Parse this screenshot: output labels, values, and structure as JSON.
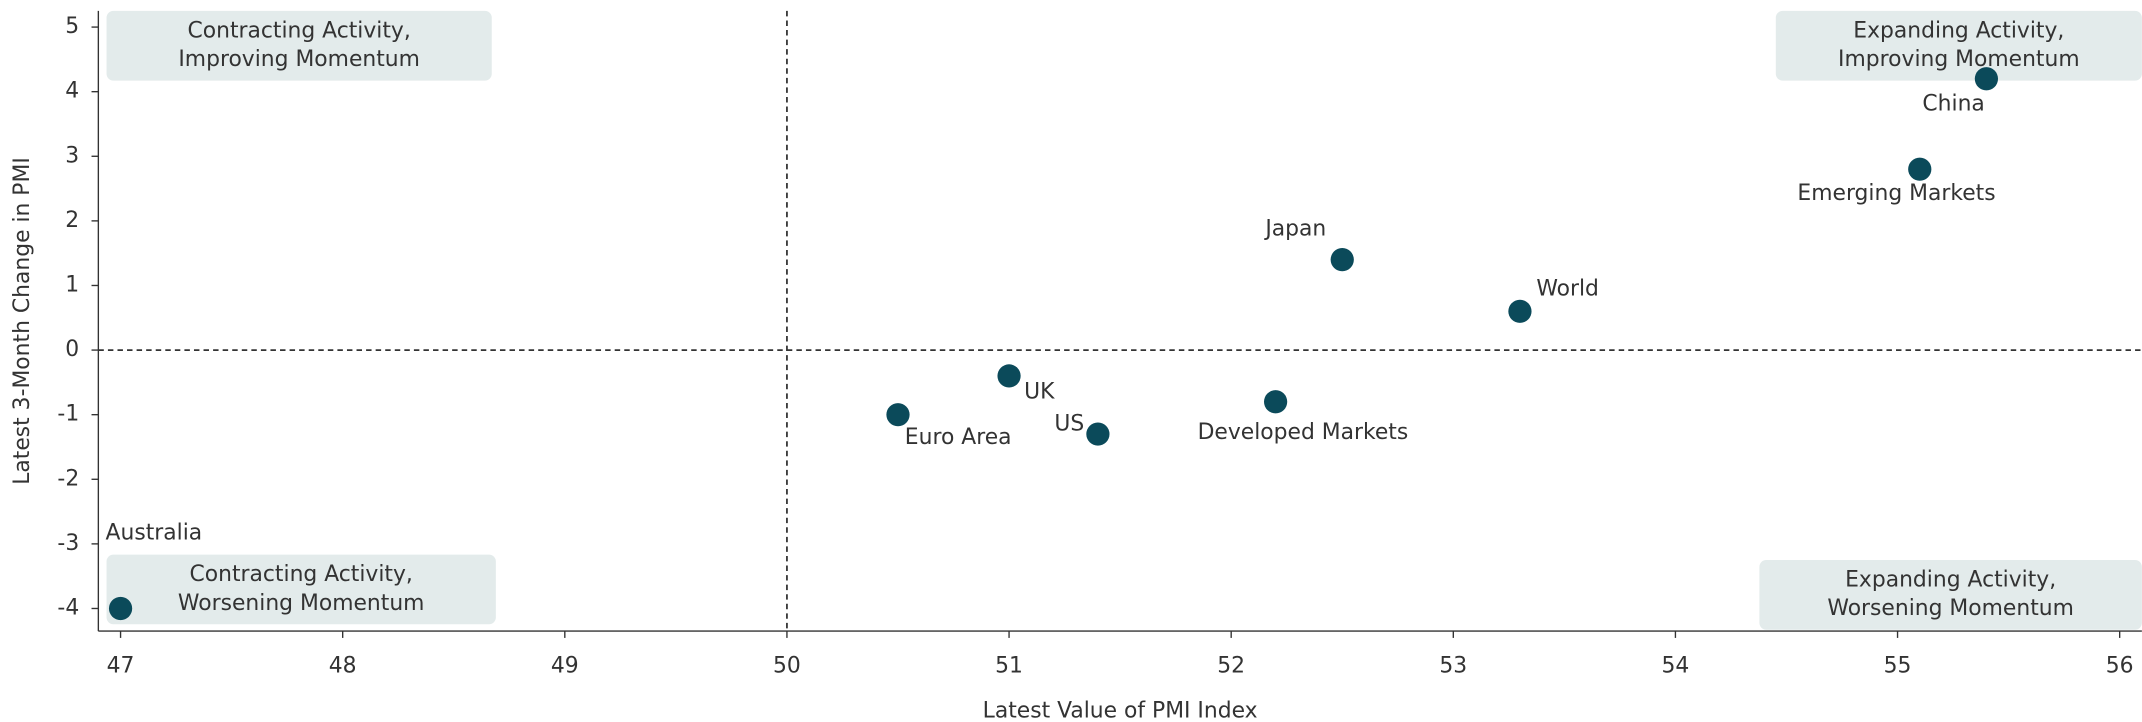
{
  "chart_data": {
    "type": "scatter",
    "xlabel": "Latest Value of PMI Index",
    "ylabel": "Latest 3-Month Change in PMI",
    "color": "#0b4a5a",
    "series": [
      {
        "names": [
          "Australia",
          "Euro Area",
          "UK",
          "US",
          "Developed Markets",
          "Japan",
          "World",
          "Emerging Markets",
          "China"
        ],
        "x": [
          47,
          50.5,
          51,
          51.4,
          52.2,
          52.5,
          53.3,
          55.1,
          55.4
        ],
        "values": [
          -4,
          -1,
          -0.4,
          -1.3,
          -0.8,
          1.4,
          0.6,
          2.8,
          4.2
        ]
      }
    ],
    "xlim": [
      46.9,
      56.1
    ],
    "ylim": [
      -4.35,
      5.25
    ],
    "xticks": [
      47,
      48,
      49,
      50,
      51,
      52,
      53,
      54,
      55,
      56
    ],
    "yticks": [
      -4,
      -3,
      -2,
      -1,
      0,
      1,
      2,
      3,
      4,
      5
    ],
    "reference_lines": {
      "x": 50,
      "y": 0
    },
    "annotations": [
      {
        "lines": [
          "Contracting Activity,",
          "Improving Momentum"
        ]
      },
      {
        "lines": [
          "Expanding Activity,",
          "Improving Momentum"
        ]
      },
      {
        "lines": [
          "Contracting Activity,",
          "Worsening Momentum"
        ]
      },
      {
        "lines": [
          "Expanding Activity,",
          "Worsening Momentum"
        ]
      }
    ]
  }
}
